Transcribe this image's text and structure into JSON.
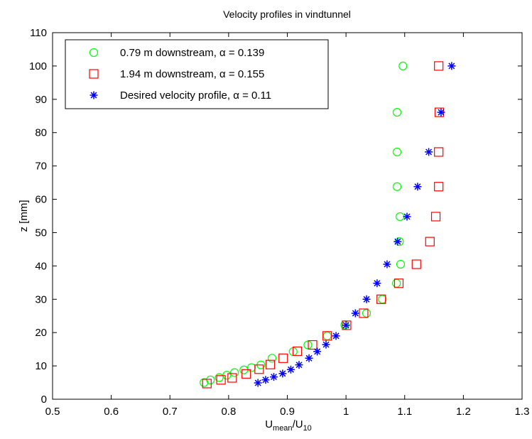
{
  "chart_data": {
    "type": "scatter",
    "title": "Velocity profiles in vindtunnel",
    "xlabel": {
      "base": "U",
      "sub1": "mean",
      "mid": "/U",
      "sub2": "10"
    },
    "ylabel": "z [mm]",
    "xlim": [
      0.5,
      1.3
    ],
    "ylim": [
      0,
      110
    ],
    "xticks": [
      "0.5",
      "0.6",
      "0.7",
      "0.8",
      "0.9",
      "1",
      "1.1",
      "1.2",
      "1.3"
    ],
    "yticks": [
      "0",
      "10",
      "20",
      "30",
      "40",
      "50",
      "60",
      "70",
      "80",
      "90",
      "100",
      "110"
    ],
    "grid": false,
    "legend_position": "top-left",
    "series": [
      {
        "name": "0.79 m downstream, α = 0.139",
        "marker": "circle",
        "color": "#00ff00",
        "points": [
          [
            0.758,
            5
          ],
          [
            0.769,
            5.8
          ],
          [
            0.784,
            6.5
          ],
          [
            0.797,
            7.2
          ],
          [
            0.81,
            8
          ],
          [
            0.826,
            8.8
          ],
          [
            0.839,
            9.5
          ],
          [
            0.855,
            10.3
          ],
          [
            0.874,
            12.3
          ],
          [
            0.91,
            14.3
          ],
          [
            0.935,
            16.3
          ],
          [
            0.968,
            19
          ],
          [
            0.998,
            22.3
          ],
          [
            1.035,
            25.8
          ],
          [
            1.062,
            30
          ],
          [
            1.086,
            34.8
          ],
          [
            1.093,
            40.5
          ],
          [
            1.091,
            47.3
          ],
          [
            1.092,
            54.8
          ],
          [
            1.087,
            63.8
          ],
          [
            1.087,
            74.2
          ],
          [
            1.087,
            86.1
          ],
          [
            1.097,
            100
          ]
        ]
      },
      {
        "name": "1.94 m downstream, α = 0.155",
        "marker": "square",
        "color": "#ff0000",
        "points": [
          [
            0.763,
            4.7
          ],
          [
            0.787,
            5.8
          ],
          [
            0.806,
            6.4
          ],
          [
            0.83,
            7.6
          ],
          [
            0.852,
            9
          ],
          [
            0.871,
            10.4
          ],
          [
            0.893,
            12.3
          ],
          [
            0.917,
            14.4
          ],
          [
            0.943,
            16.3
          ],
          [
            0.968,
            19
          ],
          [
            1.001,
            22.2
          ],
          [
            1.03,
            25.8
          ],
          [
            1.06,
            30
          ],
          [
            1.09,
            34.8
          ],
          [
            1.12,
            40.5
          ],
          [
            1.143,
            47.3
          ],
          [
            1.153,
            54.8
          ],
          [
            1.158,
            63.8
          ],
          [
            1.158,
            74.2
          ],
          [
            1.159,
            86.1
          ],
          [
            1.158,
            100
          ]
        ]
      },
      {
        "name": "Desired velocity profile, α = 0.11",
        "marker": "asterisk",
        "color": "#0000ff",
        "points": [
          [
            0.85,
            4.9
          ],
          [
            0.863,
            5.8
          ],
          [
            0.877,
            6.7
          ],
          [
            0.892,
            7.7
          ],
          [
            0.906,
            8.9
          ],
          [
            0.92,
            10.3
          ],
          [
            0.937,
            12.3
          ],
          [
            0.951,
            14.3
          ],
          [
            0.966,
            16.4
          ],
          [
            0.983,
            19
          ],
          [
            1.0,
            22.2
          ],
          [
            1.016,
            25.8
          ],
          [
            1.035,
            30
          ],
          [
            1.053,
            34.8
          ],
          [
            1.07,
            40.5
          ],
          [
            1.088,
            47.3
          ],
          [
            1.104,
            54.8
          ],
          [
            1.122,
            63.8
          ],
          [
            1.141,
            74.2
          ],
          [
            1.162,
            86.1
          ],
          [
            1.18,
            100
          ]
        ]
      }
    ]
  }
}
